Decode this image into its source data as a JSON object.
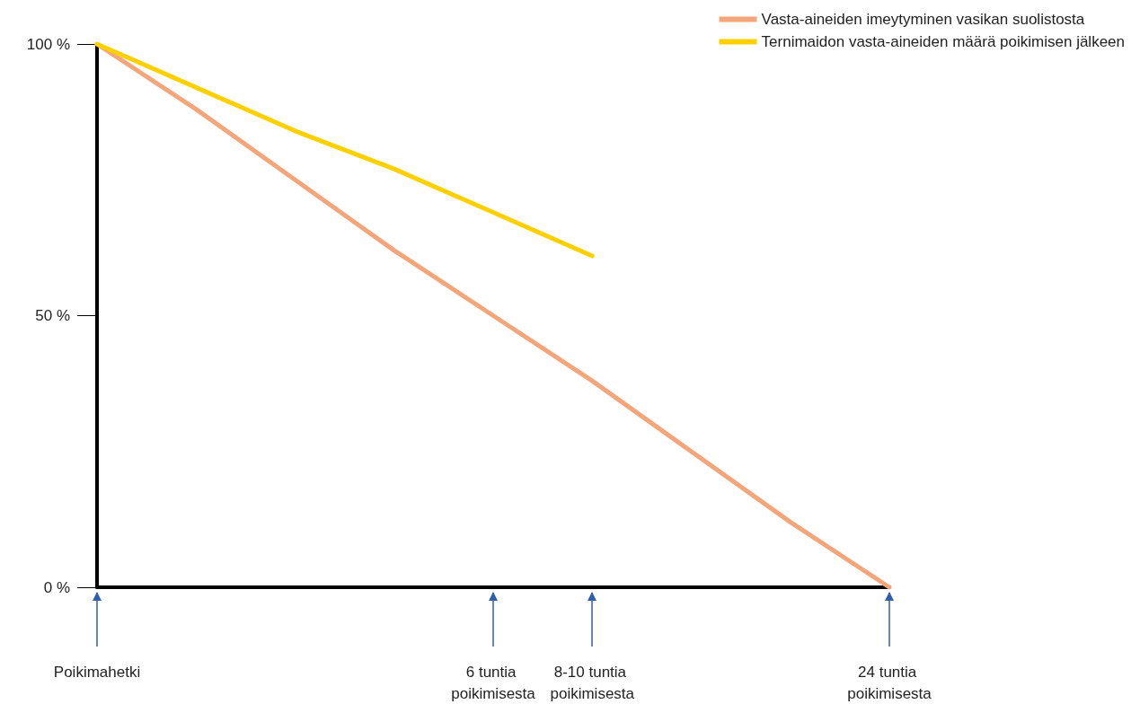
{
  "chart_data": {
    "type": "line",
    "categories": [
      "Poikimahetki",
      null,
      null,
      null,
      "6 tuntia poikimisesta",
      "8-10 tuntia poikimisesta",
      null,
      null,
      "24 tuntia poikimisesta"
    ],
    "series": [
      {
        "name": "Vasta-aineiden imeytyminen vasikan suolistosta",
        "color": "#f4a57a",
        "values": [
          100,
          88,
          75,
          62,
          50,
          38,
          25,
          12,
          0
        ]
      },
      {
        "name": "Ternimaidon vasta-aineiden määrä poikimisen jälkeen",
        "color": "#ffd000",
        "values": [
          100,
          92,
          84,
          77,
          69,
          61,
          null,
          null,
          null
        ]
      }
    ],
    "ylim": [
      0,
      100
    ],
    "yticks": [
      {
        "value": 0,
        "label": "0 %"
      },
      {
        "value": 50,
        "label": "50 %"
      },
      {
        "value": 100,
        "label": "100 %"
      }
    ],
    "grid": false,
    "legend": "top right",
    "marker": "none",
    "line_style": "solid"
  }
}
